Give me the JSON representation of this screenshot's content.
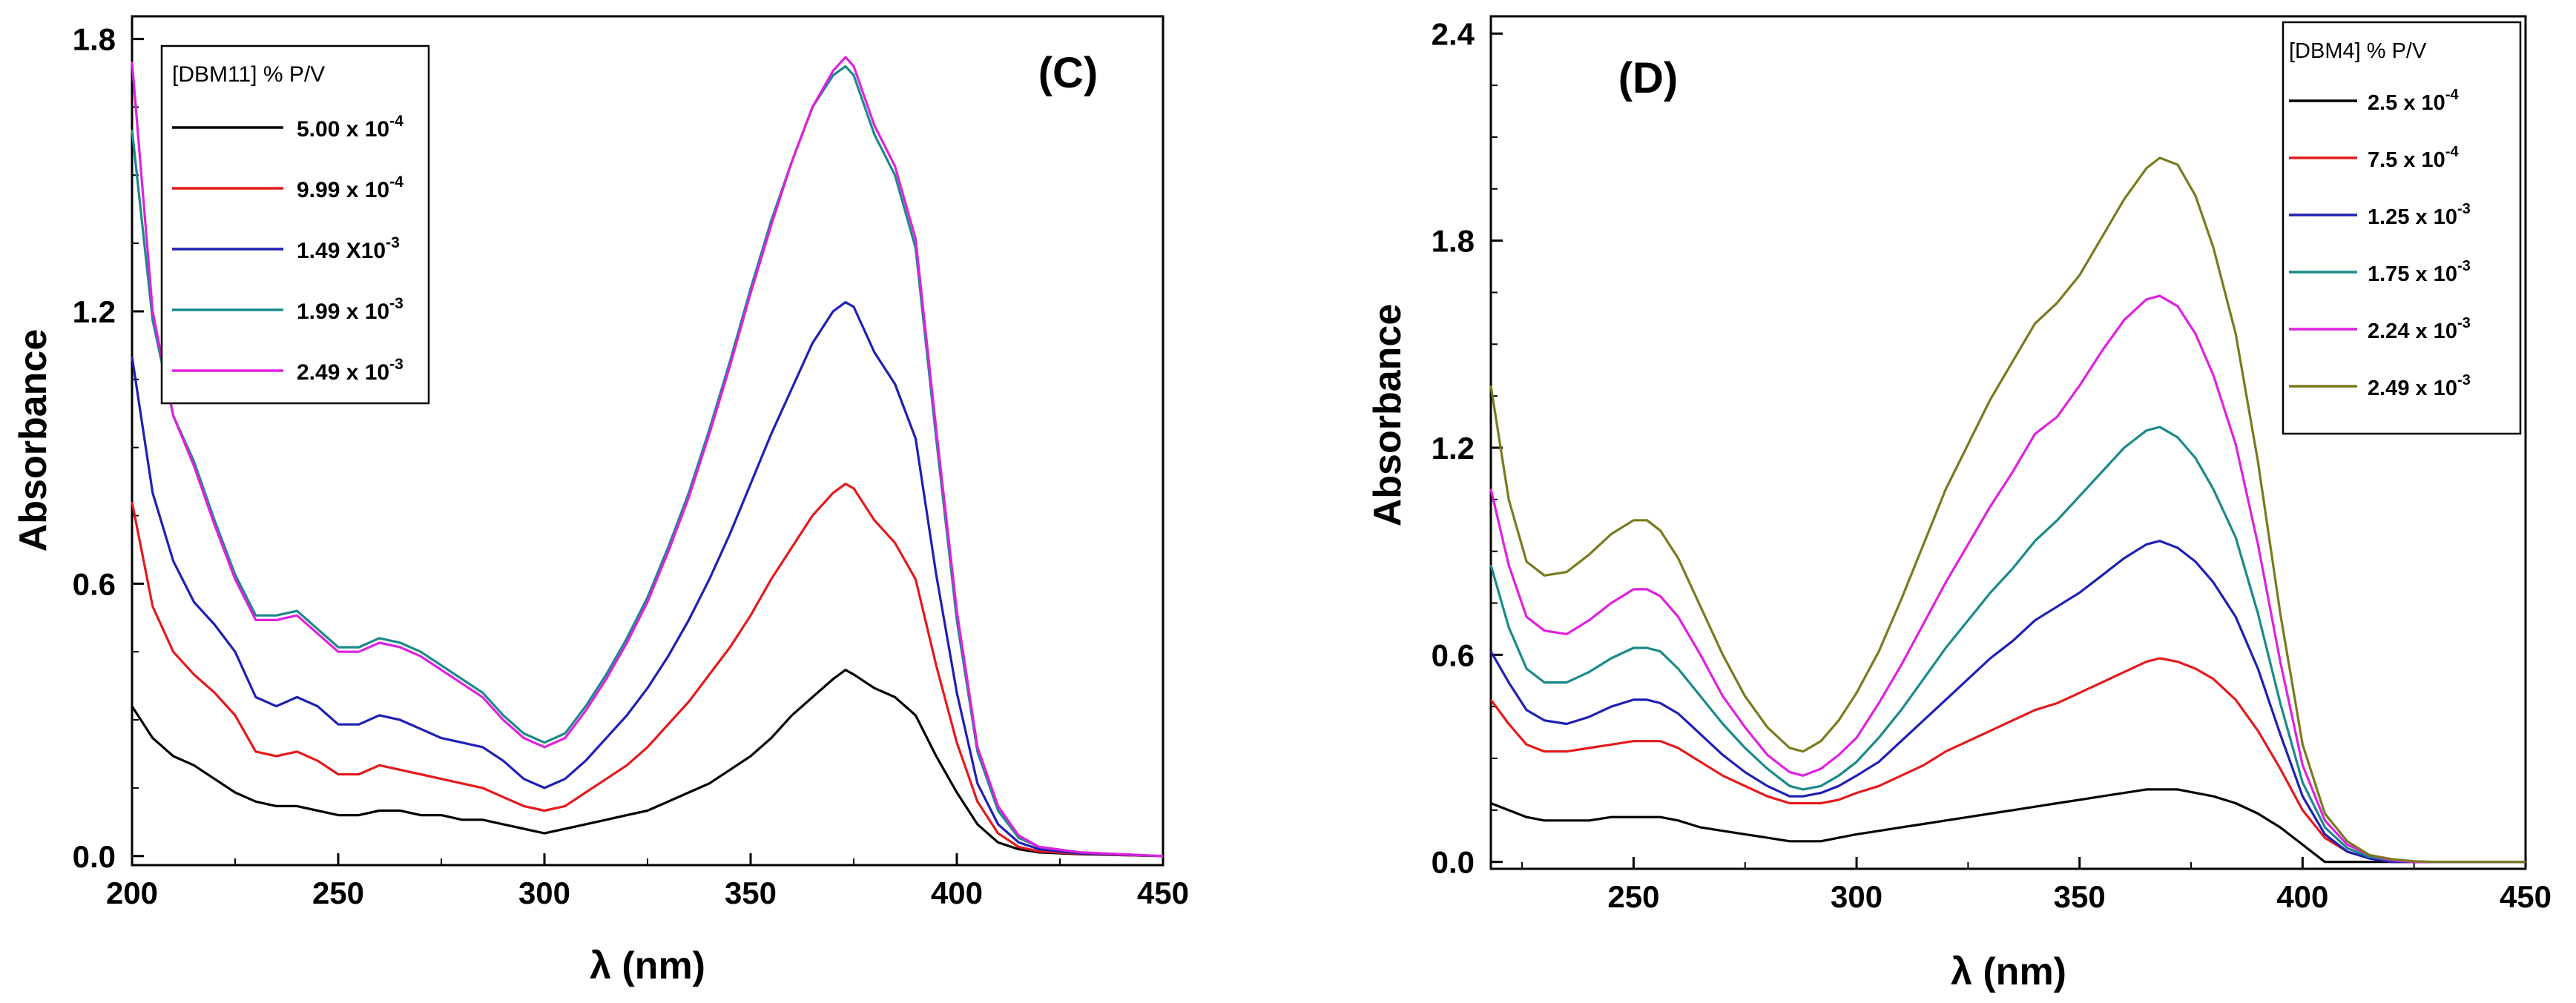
{
  "chart_data": [
    {
      "type": "line",
      "panel_label": "(C)",
      "xlabel": "λ (nm)",
      "ylabel": "Absorbance",
      "xlim": [
        200,
        450
      ],
      "ylim": [
        -0.02,
        1.85
      ],
      "xticks": [
        200,
        250,
        300,
        350,
        400,
        450
      ],
      "xtick_labels": [
        "200",
        "250",
        "300",
        "350",
        "400",
        "450"
      ],
      "yticks": [
        0.0,
        0.6,
        1.2,
        1.8
      ],
      "ytick_labels": [
        "0.0",
        "0.6",
        "1.2",
        "1.8"
      ],
      "grid": false,
      "legend_title": "[DBM11] % P/V",
      "legend_position": "top-left",
      "x": [
        200,
        205,
        210,
        215,
        220,
        225,
        230,
        235,
        240,
        245,
        250,
        255,
        260,
        265,
        270,
        275,
        280,
        285,
        290,
        295,
        300,
        305,
        310,
        315,
        320,
        325,
        330,
        335,
        340,
        345,
        350,
        355,
        360,
        365,
        370,
        373,
        375,
        380,
        385,
        390,
        395,
        400,
        405,
        410,
        415,
        420,
        430,
        440,
        450
      ],
      "series": [
        {
          "name": "5.00 x 10^-4",
          "legend_base": "5.00 x 10",
          "legend_exp": "-4",
          "color": "#000000",
          "values": [
            0.33,
            0.26,
            0.22,
            0.2,
            0.17,
            0.14,
            0.12,
            0.11,
            0.11,
            0.1,
            0.09,
            0.09,
            0.1,
            0.1,
            0.09,
            0.09,
            0.08,
            0.08,
            0.07,
            0.06,
            0.05,
            0.06,
            0.07,
            0.08,
            0.09,
            0.1,
            0.12,
            0.14,
            0.16,
            0.19,
            0.22,
            0.26,
            0.31,
            0.35,
            0.39,
            0.41,
            0.4,
            0.37,
            0.35,
            0.31,
            0.22,
            0.14,
            0.07,
            0.03,
            0.015,
            0.008,
            0.004,
            0.002,
            0.0
          ]
        },
        {
          "name": "9.99 x 10^-4",
          "legend_base": "9.99 x 10",
          "legend_exp": "-4",
          "color": "#e31a1c",
          "values": [
            0.78,
            0.55,
            0.45,
            0.4,
            0.36,
            0.31,
            0.23,
            0.22,
            0.23,
            0.21,
            0.18,
            0.18,
            0.2,
            0.19,
            0.18,
            0.17,
            0.16,
            0.15,
            0.13,
            0.11,
            0.1,
            0.11,
            0.14,
            0.17,
            0.2,
            0.24,
            0.29,
            0.34,
            0.4,
            0.46,
            0.53,
            0.61,
            0.68,
            0.75,
            0.8,
            0.82,
            0.81,
            0.74,
            0.69,
            0.61,
            0.42,
            0.25,
            0.12,
            0.05,
            0.02,
            0.01,
            0.005,
            0.002,
            0.0
          ]
        },
        {
          "name": "1.49 X10^-3",
          "legend_base": "1.49 X10",
          "legend_exp": "-3",
          "color": "#1f1fb4",
          "values": [
            1.1,
            0.8,
            0.65,
            0.56,
            0.51,
            0.45,
            0.35,
            0.33,
            0.35,
            0.33,
            0.29,
            0.29,
            0.31,
            0.3,
            0.28,
            0.26,
            0.25,
            0.24,
            0.21,
            0.17,
            0.15,
            0.17,
            0.21,
            0.26,
            0.31,
            0.37,
            0.44,
            0.52,
            0.61,
            0.71,
            0.82,
            0.93,
            1.03,
            1.13,
            1.2,
            1.22,
            1.21,
            1.11,
            1.04,
            0.92,
            0.62,
            0.36,
            0.16,
            0.07,
            0.03,
            0.015,
            0.006,
            0.003,
            0.0
          ]
        },
        {
          "name": "1.99 x 10^-3",
          "legend_base": "1.99 x 10",
          "legend_exp": "-3",
          "color": "#1a8a8a",
          "values": [
            1.6,
            1.18,
            0.97,
            0.87,
            0.74,
            0.62,
            0.53,
            0.53,
            0.54,
            0.5,
            0.46,
            0.46,
            0.48,
            0.47,
            0.45,
            0.42,
            0.39,
            0.36,
            0.31,
            0.27,
            0.25,
            0.27,
            0.33,
            0.4,
            0.48,
            0.57,
            0.68,
            0.8,
            0.94,
            1.09,
            1.25,
            1.4,
            1.53,
            1.65,
            1.72,
            1.74,
            1.72,
            1.59,
            1.5,
            1.34,
            0.92,
            0.52,
            0.23,
            0.1,
            0.04,
            0.02,
            0.008,
            0.004,
            0.0
          ]
        },
        {
          "name": "2.49 x 10^-3",
          "legend_base": "2.49 x 10",
          "legend_exp": "-3",
          "color": "#e020e0",
          "values": [
            1.75,
            1.2,
            0.97,
            0.86,
            0.73,
            0.61,
            0.52,
            0.52,
            0.53,
            0.49,
            0.45,
            0.45,
            0.47,
            0.46,
            0.44,
            0.41,
            0.38,
            0.35,
            0.3,
            0.26,
            0.24,
            0.26,
            0.32,
            0.39,
            0.47,
            0.56,
            0.67,
            0.79,
            0.93,
            1.08,
            1.24,
            1.39,
            1.53,
            1.65,
            1.73,
            1.76,
            1.74,
            1.61,
            1.52,
            1.36,
            0.94,
            0.54,
            0.24,
            0.11,
            0.045,
            0.02,
            0.008,
            0.004,
            0.0
          ]
        }
      ]
    },
    {
      "type": "line",
      "panel_label": "(D)",
      "xlabel": "λ (nm)",
      "ylabel": "Absorbance",
      "xlim": [
        218,
        450
      ],
      "ylim": [
        -0.02,
        2.45
      ],
      "xticks": [
        250,
        300,
        350,
        400,
        450
      ],
      "xtick_labels": [
        "250",
        "300",
        "350",
        "400",
        "450"
      ],
      "yticks": [
        0.0,
        0.6,
        1.2,
        1.8,
        2.4
      ],
      "ytick_labels": [
        "0.0",
        "0.6",
        "1.2",
        "1.8",
        "2.4"
      ],
      "grid": false,
      "legend_title": "[DBM4] % P/V",
      "legend_position": "top-right",
      "x": [
        218,
        222,
        226,
        230,
        235,
        240,
        245,
        250,
        253,
        256,
        260,
        265,
        270,
        275,
        280,
        285,
        288,
        292,
        296,
        300,
        305,
        310,
        315,
        320,
        325,
        330,
        335,
        340,
        345,
        350,
        355,
        360,
        365,
        368,
        372,
        376,
        380,
        385,
        390,
        395,
        400,
        405,
        410,
        415,
        420,
        425,
        430,
        440,
        450
      ],
      "series": [
        {
          "name": "2.5 x 10^-4",
          "legend_base": "2.5 x 10",
          "legend_exp": "-4",
          "color": "#000000",
          "values": [
            0.17,
            0.15,
            0.13,
            0.12,
            0.12,
            0.12,
            0.13,
            0.13,
            0.13,
            0.13,
            0.12,
            0.1,
            0.09,
            0.08,
            0.07,
            0.06,
            0.06,
            0.06,
            0.07,
            0.08,
            0.09,
            0.1,
            0.11,
            0.12,
            0.13,
            0.14,
            0.15,
            0.16,
            0.17,
            0.18,
            0.19,
            0.2,
            0.21,
            0.21,
            0.21,
            0.2,
            0.19,
            0.17,
            0.14,
            0.1,
            0.05,
            0.0,
            0.0,
            0.0,
            0.0,
            0.0,
            0.0,
            0.0,
            0.0
          ]
        },
        {
          "name": "7.5 x 10^-4",
          "legend_base": "7.5 x 10",
          "legend_exp": "-4",
          "color": "#e31a1c",
          "values": [
            0.47,
            0.4,
            0.34,
            0.32,
            0.32,
            0.33,
            0.34,
            0.35,
            0.35,
            0.35,
            0.33,
            0.29,
            0.25,
            0.22,
            0.19,
            0.17,
            0.17,
            0.17,
            0.18,
            0.2,
            0.22,
            0.25,
            0.28,
            0.32,
            0.35,
            0.38,
            0.41,
            0.44,
            0.46,
            0.49,
            0.52,
            0.55,
            0.58,
            0.59,
            0.58,
            0.56,
            0.53,
            0.47,
            0.38,
            0.27,
            0.15,
            0.07,
            0.03,
            0.01,
            0.0,
            0.0,
            0.0,
            0.0,
            0.0
          ]
        },
        {
          "name": "1.25 x 10^-3",
          "legend_base": "1.25 x 10",
          "legend_exp": "-3",
          "color": "#1f1fb4",
          "values": [
            0.61,
            0.52,
            0.44,
            0.41,
            0.4,
            0.42,
            0.45,
            0.47,
            0.47,
            0.46,
            0.43,
            0.37,
            0.31,
            0.26,
            0.22,
            0.19,
            0.19,
            0.2,
            0.22,
            0.25,
            0.29,
            0.35,
            0.41,
            0.47,
            0.53,
            0.59,
            0.64,
            0.7,
            0.74,
            0.78,
            0.83,
            0.88,
            0.92,
            0.93,
            0.91,
            0.87,
            0.81,
            0.71,
            0.56,
            0.37,
            0.19,
            0.08,
            0.03,
            0.01,
            0.0,
            0.0,
            0.0,
            0.0,
            0.0
          ]
        },
        {
          "name": "1.75 x 10^-3",
          "legend_base": "1.75 x 10",
          "legend_exp": "-3",
          "color": "#1a8a8a",
          "values": [
            0.86,
            0.68,
            0.56,
            0.52,
            0.52,
            0.55,
            0.59,
            0.62,
            0.62,
            0.61,
            0.56,
            0.48,
            0.4,
            0.33,
            0.27,
            0.22,
            0.21,
            0.22,
            0.25,
            0.29,
            0.36,
            0.44,
            0.53,
            0.62,
            0.7,
            0.78,
            0.85,
            0.93,
            0.99,
            1.06,
            1.13,
            1.2,
            1.25,
            1.26,
            1.23,
            1.17,
            1.08,
            0.94,
            0.72,
            0.46,
            0.23,
            0.1,
            0.04,
            0.015,
            0.005,
            0.0,
            0.0,
            0.0,
            0.0
          ]
        },
        {
          "name": "2.24 x 10^-3",
          "legend_base": "2.24 x 10",
          "legend_exp": "-3",
          "color": "#e020e0",
          "values": [
            1.08,
            0.86,
            0.71,
            0.67,
            0.66,
            0.7,
            0.75,
            0.79,
            0.79,
            0.77,
            0.71,
            0.6,
            0.48,
            0.39,
            0.31,
            0.26,
            0.25,
            0.27,
            0.31,
            0.36,
            0.46,
            0.57,
            0.69,
            0.81,
            0.92,
            1.03,
            1.13,
            1.24,
            1.29,
            1.38,
            1.48,
            1.57,
            1.63,
            1.64,
            1.61,
            1.53,
            1.41,
            1.21,
            0.92,
            0.58,
            0.28,
            0.12,
            0.05,
            0.02,
            0.005,
            0.0,
            0.0,
            0.0,
            0.0
          ]
        },
        {
          "name": "2.49 x 10^-3",
          "legend_base": "2.49 x 10",
          "legend_exp": "-3",
          "color": "#7a7a1e",
          "values": [
            1.38,
            1.05,
            0.87,
            0.83,
            0.84,
            0.89,
            0.95,
            0.99,
            0.99,
            0.96,
            0.88,
            0.74,
            0.6,
            0.48,
            0.39,
            0.33,
            0.32,
            0.35,
            0.41,
            0.49,
            0.61,
            0.76,
            0.92,
            1.08,
            1.21,
            1.34,
            1.45,
            1.56,
            1.62,
            1.7,
            1.81,
            1.92,
            2.01,
            2.04,
            2.02,
            1.93,
            1.78,
            1.53,
            1.16,
            0.72,
            0.34,
            0.14,
            0.06,
            0.02,
            0.008,
            0.002,
            0.0,
            0.0,
            0.0
          ]
        }
      ]
    }
  ]
}
